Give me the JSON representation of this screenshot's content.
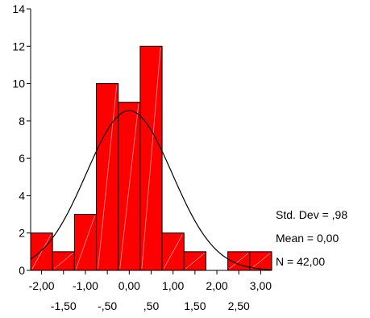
{
  "chart_data": {
    "type": "bar",
    "subtype": "histogram-with-normal-curve",
    "title": "",
    "xlabel": "",
    "ylabel": "",
    "bin_width": 0.5,
    "bins": [
      {
        "center": -2.0,
        "count": 2
      },
      {
        "center": -1.5,
        "count": 1
      },
      {
        "center": -1.0,
        "count": 3
      },
      {
        "center": -0.5,
        "count": 10
      },
      {
        "center": 0.0,
        "count": 9
      },
      {
        "center": 0.5,
        "count": 12
      },
      {
        "center": 1.0,
        "count": 2
      },
      {
        "center": 1.5,
        "count": 1
      },
      {
        "center": 2.0,
        "count": 0
      },
      {
        "center": 2.5,
        "count": 1
      },
      {
        "center": 3.0,
        "count": 1
      }
    ],
    "xlim": [
      -2.25,
      3.25
    ],
    "ylim": [
      0,
      14
    ],
    "y_ticks": [
      {
        "value": 0,
        "label": "0"
      },
      {
        "value": 2,
        "label": "2"
      },
      {
        "value": 4,
        "label": "4"
      },
      {
        "value": 6,
        "label": "6"
      },
      {
        "value": 8,
        "label": "8"
      },
      {
        "value": 10,
        "label": "10"
      },
      {
        "value": 12,
        "label": "12"
      },
      {
        "value": 14,
        "label": "14"
      }
    ],
    "x_ticks_row1": [
      {
        "value": -2.0,
        "label": "-2,00"
      },
      {
        "value": -1.0,
        "label": "-1,00"
      },
      {
        "value": 0.0,
        "label": "0,00"
      },
      {
        "value": 1.0,
        "label": "1,00"
      },
      {
        "value": 2.0,
        "label": "2,00"
      },
      {
        "value": 3.0,
        "label": "3,00"
      }
    ],
    "x_ticks_row2": [
      {
        "value": -1.5,
        "label": "-1,50"
      },
      {
        "value": -0.5,
        "label": "-,50"
      },
      {
        "value": 0.5,
        "label": ",50"
      },
      {
        "value": 1.5,
        "label": "1,50"
      },
      {
        "value": 2.5,
        "label": "2,50"
      }
    ],
    "normal_curve": {
      "mean": 0.0,
      "std_dev": 0.98,
      "n": 42
    },
    "grid": false,
    "bar_color": "#ff0000",
    "bar_edge_color": "#000000",
    "curve_color": "#000000"
  },
  "stats": {
    "std_dev_label": "Std. Dev = ,98",
    "mean_label": "Mean = 0,00",
    "n_label": "N = 42,00"
  }
}
